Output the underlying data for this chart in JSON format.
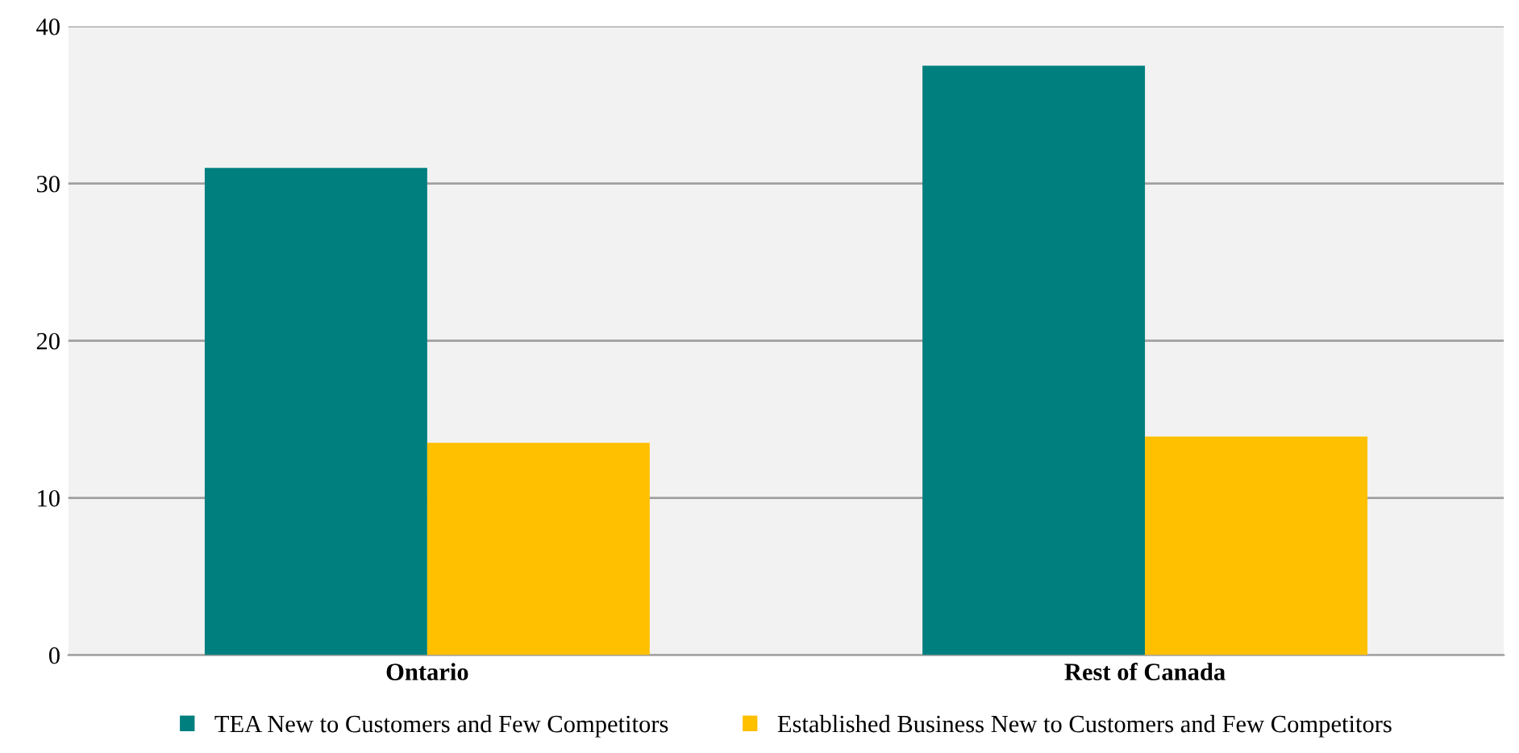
{
  "chart_data": {
    "type": "bar",
    "categories": [
      "Ontario",
      "Rest of Canada"
    ],
    "series": [
      {
        "name": "TEA New to Customers and Few Competitors",
        "color": "#007f7f",
        "values": [
          31.0,
          37.5
        ]
      },
      {
        "name": "Established Business New to Customers and Few Competitors",
        "color": "#ffc000",
        "values": [
          13.5,
          13.9
        ]
      }
    ],
    "ylim": [
      0,
      40
    ],
    "yticks": [
      0,
      10,
      20,
      30,
      40
    ],
    "grid": "y",
    "legend": "bottom"
  }
}
